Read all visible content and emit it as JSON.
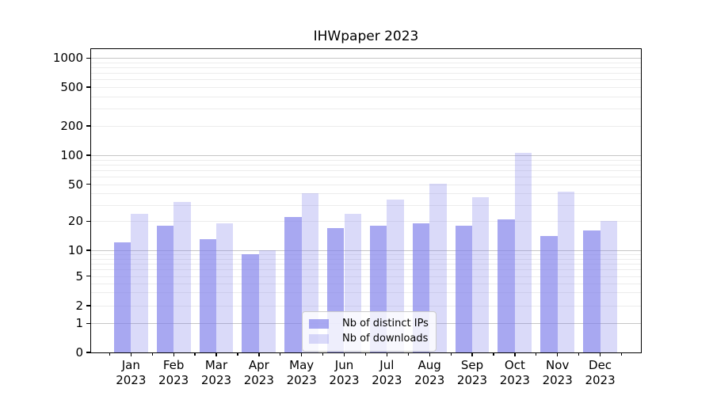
{
  "title": "IHWpaper 2023",
  "chart_data": {
    "type": "bar",
    "title": "IHWpaper 2023",
    "categories": [
      "Jan",
      "Feb",
      "Mar",
      "Apr",
      "May",
      "Jun",
      "Jul",
      "Aug",
      "Sep",
      "Oct",
      "Nov",
      "Dec"
    ],
    "category_year": "2023",
    "series": [
      {
        "name": "Nb of distinct IPs",
        "color": "rgba(127,127,235,0.68)",
        "values": [
          12,
          18,
          13,
          9,
          22,
          17,
          18,
          19,
          18,
          21,
          14,
          16
        ]
      },
      {
        "name": "Nb of downloads",
        "color": "rgba(127,127,235,0.29)",
        "values": [
          24,
          32,
          19,
          10,
          40,
          24,
          34,
          51,
          36,
          106,
          42,
          20
        ]
      }
    ],
    "xlabel": "",
    "ylabel": "",
    "y_axis": {
      "scale": "log-like (symlog)",
      "ticks": [
        0,
        1,
        2,
        5,
        10,
        20,
        50,
        100,
        200,
        500,
        1000
      ],
      "major_grid": [
        1,
        10,
        100,
        1000
      ],
      "minor_grid": [
        2,
        3,
        4,
        5,
        6,
        7,
        8,
        9,
        20,
        30,
        40,
        50,
        60,
        70,
        80,
        90,
        200,
        300,
        400,
        500,
        600,
        700,
        800,
        900
      ],
      "ylim": [
        0,
        1250
      ]
    },
    "grid": true,
    "legend_position": "lower center",
    "background_color": "#ffffff"
  },
  "legend": {
    "items": [
      {
        "label": "Nb of distinct IPs",
        "color": "rgba(127,127,235,0.68)"
      },
      {
        "label": "Nb of downloads",
        "color": "rgba(127,127,235,0.29)"
      }
    ]
  }
}
